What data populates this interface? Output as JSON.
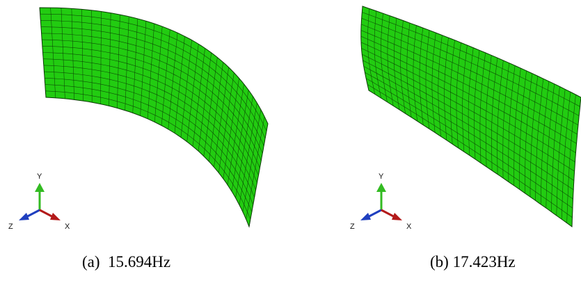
{
  "panels": [
    {
      "caption": "(a)  15.694Hz",
      "axes": {
        "y": "Y",
        "z": "Z",
        "x": "X"
      }
    },
    {
      "caption": "(b) 17.423Hz",
      "axes": {
        "y": "Y",
        "z": "Z",
        "x": "X"
      }
    }
  ],
  "colors": {
    "mesh_fill": "#22cc11",
    "mesh_line": "#0b3a05",
    "axis_y": "#33bb22",
    "axis_z": "#1f3fbf",
    "axis_x": "#b31a1a"
  }
}
